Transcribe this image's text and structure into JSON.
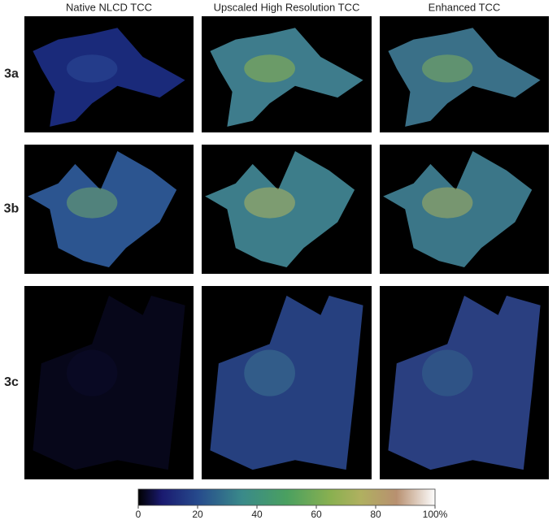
{
  "columns": [
    "Native NLCD TCC",
    "Upscaled High Resolution TCC",
    "Enhanced TCC"
  ],
  "rows": [
    "3a",
    "3b",
    "3c"
  ],
  "colorbar": {
    "lim": [
      0,
      100
    ],
    "ticks": [
      0,
      20,
      40,
      60,
      80,
      {
        "value": 100,
        "label": "100%"
      }
    ]
  }
}
